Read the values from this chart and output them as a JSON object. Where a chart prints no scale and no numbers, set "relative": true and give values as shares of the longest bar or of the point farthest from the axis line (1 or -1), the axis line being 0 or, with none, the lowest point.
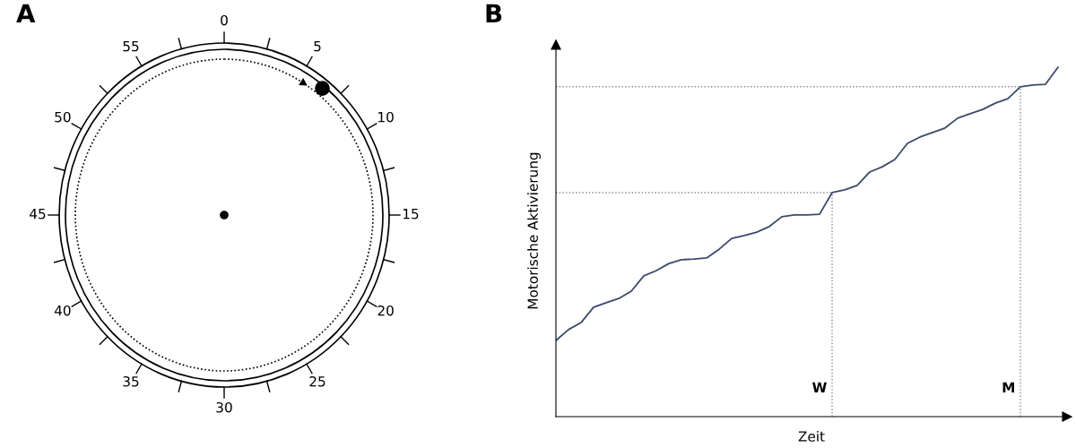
{
  "chart_data": [
    {
      "type": "other",
      "title": "A",
      "annotations": [
        "0",
        "5",
        "10",
        "15",
        "20",
        "25",
        "30",
        "35",
        "40",
        "45",
        "50",
        "55"
      ]
    },
    {
      "type": "line",
      "title": "B",
      "xlabel": "Zeit",
      "ylabel": "Motorische Aktivierung",
      "relative": true,
      "color": "#3a4a6b",
      "grid": false,
      "legend": false,
      "categories": [
        null,
        null,
        null,
        null,
        null,
        null,
        null,
        null,
        null,
        null,
        null,
        null,
        null,
        null,
        null,
        null,
        null,
        null,
        null,
        null,
        null,
        null,
        null,
        null,
        null,
        null,
        null,
        null,
        null,
        null,
        null,
        null,
        null,
        null,
        null,
        null,
        null,
        null,
        null,
        null,
        null
      ],
      "values": [
        0.218,
        0.249,
        0.269,
        0.313,
        0.326,
        0.338,
        0.359,
        0.403,
        0.418,
        0.438,
        0.449,
        0.451,
        0.454,
        0.479,
        0.51,
        0.518,
        0.528,
        0.544,
        0.572,
        0.577,
        0.577,
        0.579,
        0.641,
        0.649,
        0.662,
        0.7,
        0.715,
        0.736,
        0.782,
        0.8,
        0.813,
        0.826,
        0.854,
        0.867,
        0.879,
        0.897,
        0.91,
        0.944,
        0.949,
        0.951,
        1.0
      ],
      "annotations": [
        "W",
        "M"
      ],
      "ref_lines": [
        {
          "axis": "y",
          "value": 0.641,
          "line_style": "dotted",
          "color": "#888888"
        },
        {
          "axis": "y",
          "value": 0.944,
          "line_style": "dotted",
          "color": "#888888"
        }
      ]
    }
  ]
}
